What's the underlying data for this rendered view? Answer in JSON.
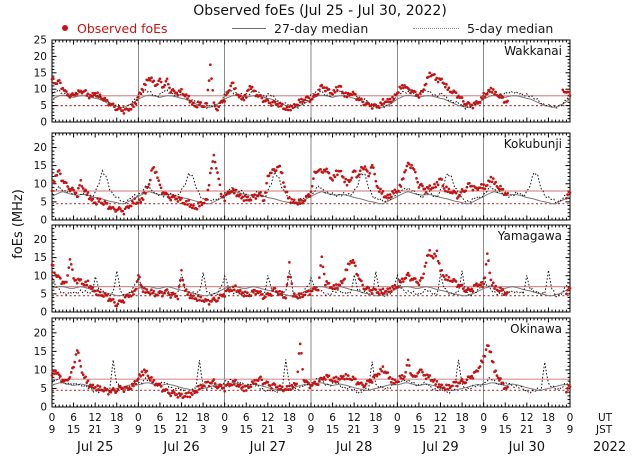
{
  "title": "Observed foEs (Jul 25 - Jul 30, 2022)",
  "legend": {
    "observed": "Observed foEs",
    "median27": "27-day median",
    "median5": "5-day median"
  },
  "colors": {
    "observed": "#c41414",
    "median27": "#7a7a7a",
    "median5": "#1a1a1a",
    "criteria_solid": "#d89090",
    "criteria_dotted": "#b03030",
    "grid": "#8a8a8a",
    "axis": "#000000"
  },
  "axis": {
    "ylabel": "foEs (MHz)",
    "ut_label": "UT",
    "jst_label": "JST",
    "year_label": "2022",
    "xtick_hours_ut": [
      0,
      6,
      12,
      18
    ],
    "xtick_hours_jst": [
      9,
      15,
      21,
      3
    ],
    "days": [
      "Jul 25",
      "Jul 26",
      "Jul 27",
      "Jul 28",
      "Jul 29",
      "Jul 30"
    ],
    "x_range_hours": [
      0,
      144
    ]
  },
  "chart_data": [
    {
      "type": "scatter",
      "station": "Wakkanai",
      "ylim": [
        0,
        25
      ],
      "yticks": [
        0,
        5,
        10,
        15,
        20,
        25
      ],
      "criteria": {
        "solid": 8,
        "dotted": 5
      },
      "observed": [
        13,
        11.5,
        12,
        10.5,
        9,
        8.5,
        8,
        9,
        8.5,
        9.5,
        8,
        8.5,
        9,
        8,
        7,
        6,
        5.5,
        5,
        4.5,
        4,
        3.5,
        3.2,
        4,
        5,
        8,
        10,
        12,
        13.5,
        12,
        11,
        12.5,
        11,
        13,
        10,
        9,
        8.5,
        9,
        8,
        7.5,
        6,
        5,
        5.5,
        4.5,
        5,
        17.5,
        5.5,
        4.5,
        6,
        7,
        8.5,
        12,
        9.5,
        8,
        7.5,
        8,
        11,
        9,
        8,
        7.5,
        7,
        6.5,
        6,
        5.5,
        5,
        4.5,
        4,
        4.5,
        5,
        5.5,
        6,
        6.5,
        7,
        7,
        8,
        9.5,
        11,
        10,
        9,
        8.5,
        10,
        11.5,
        9,
        8,
        8.5,
        8,
        7,
        6.5,
        6,
        5.5,
        5,
        4.5,
        4.5,
        6,
        6.5,
        7,
        7.5,
        9,
        10,
        11,
        9.5,
        10,
        9,
        8.5,
        9,
        12,
        14,
        14.5,
        13,
        13.5,
        12,
        10,
        9,
        8.5,
        8,
        7,
        6,
        5.5,
        5,
        5.5,
        6,
        8,
        9,
        10.5,
        9,
        8,
        7,
        6,
        null,
        null,
        null,
        null,
        null,
        null,
        null,
        null,
        null,
        null,
        null,
        null,
        null,
        null,
        null,
        9.5,
        10,
        8
      ],
      "median5_daily": [
        8.5,
        9,
        9.5,
        9,
        8.5,
        8,
        8.5,
        9,
        9.5,
        9,
        8.5,
        8,
        8.5,
        8,
        7,
        6.5,
        6,
        5.5,
        5,
        4.5,
        4.5,
        5,
        5.5,
        6.5,
        8.5
      ],
      "median27_daily": [
        7,
        7.5,
        8,
        8.2,
        8,
        7.8,
        7.5,
        7.8,
        8,
        8,
        7.8,
        7.5,
        7.2,
        7,
        6.5,
        6,
        5.5,
        5,
        4.8,
        4.5,
        4.5,
        5,
        5.5,
        6.2,
        7
      ]
    },
    {
      "type": "scatter",
      "station": "Kokubunji",
      "ylim": [
        0,
        24
      ],
      "yticks": [
        0,
        5,
        10,
        15,
        20
      ],
      "criteria": {
        "solid": 8,
        "dotted": 4.5
      },
      "observed": [
        8,
        12,
        13,
        11,
        10,
        9,
        8,
        7,
        10,
        8,
        7,
        6,
        5,
        5.5,
        4.5,
        4,
        3.5,
        3,
        3.5,
        3,
        2.5,
        3,
        4,
        5,
        5,
        6,
        8,
        10,
        14,
        13,
        9,
        8,
        7,
        6.5,
        6,
        5.5,
        5,
        4.5,
        5,
        4,
        3.5,
        4,
        4.5,
        5,
        13,
        17.5,
        14,
        7,
        6,
        7,
        8,
        7.5,
        7,
        6.5,
        6,
        5.5,
        6,
        6.5,
        7,
        6,
        12,
        14,
        13,
        15,
        12,
        8,
        6,
        5.5,
        5,
        4.5,
        5,
        6,
        8,
        13,
        14.5,
        13,
        14,
        12,
        11,
        13,
        14,
        12,
        10,
        11,
        13,
        12,
        14,
        15.5,
        12,
        16,
        10,
        8,
        7,
        6.5,
        7,
        8,
        8,
        9,
        13,
        15,
        15.5,
        13,
        10,
        9,
        8,
        8.5,
        9,
        10,
        12,
        9,
        8,
        7.5,
        7,
        6.5,
        8,
        9,
        10,
        9,
        8,
        9,
        9,
        10,
        12,
        10.5,
        9,
        8,
        7,
        null,
        null,
        null,
        null,
        null,
        null,
        null,
        null,
        null,
        null,
        null,
        null,
        null,
        null,
        null,
        null,
        7,
        7.5
      ],
      "median5_daily": [
        7,
        8,
        9,
        8.5,
        8,
        7.5,
        7,
        6.5,
        7,
        7.5,
        7,
        6.5,
        8,
        10,
        13,
        12,
        9,
        7,
        6,
        5.5,
        5,
        5.5,
        6,
        6.5,
        7
      ],
      "median27_daily": [
        6.5,
        7,
        7.5,
        7.8,
        7.5,
        7.2,
        7,
        6.8,
        7,
        7,
        6.8,
        6.5,
        6.2,
        6,
        5.8,
        5.5,
        5.2,
        5,
        4.8,
        4.5,
        4.5,
        5,
        5.5,
        6,
        6.5
      ]
    },
    {
      "type": "scatter",
      "station": "Yamagawa",
      "ylim": [
        0,
        24
      ],
      "yticks": [
        0,
        5,
        10,
        15,
        20
      ],
      "criteria": {
        "solid": 7,
        "dotted": 4.5
      },
      "observed": [
        13,
        10,
        9,
        8.5,
        8,
        15.5,
        9,
        8.5,
        8,
        7.5,
        8,
        7,
        6,
        5,
        4.5,
        4,
        3.5,
        3,
        2.5,
        3,
        3.5,
        4,
        4.5,
        5,
        10.5,
        7,
        6,
        5.5,
        5,
        4.5,
        5,
        5.5,
        6,
        5,
        4.5,
        4,
        10.5,
        6,
        5,
        4.5,
        4,
        3.5,
        3,
        2.5,
        3,
        3.5,
        4,
        4.5,
        5,
        5.5,
        6,
        6.5,
        6,
        5.5,
        5,
        4.5,
        5,
        5.5,
        5,
        4.5,
        5,
        5.5,
        6,
        5,
        4.5,
        4,
        13.5,
        5,
        4.5,
        4,
        4.5,
        5,
        6,
        6.5,
        7,
        15,
        8,
        7,
        6.5,
        7,
        8,
        9,
        12,
        14,
        13,
        10,
        8,
        7,
        6.5,
        6,
        5.5,
        5,
        5.5,
        6,
        6.5,
        7,
        7,
        8,
        9,
        10,
        9.5,
        9,
        8.5,
        9,
        14,
        16,
        15,
        16.5,
        12,
        10,
        9,
        8.5,
        8,
        7.5,
        7,
        6.5,
        6,
        6.5,
        7,
        7.5,
        7,
        16.5,
        9,
        7,
        6,
        5.5,
        5,
        null,
        null,
        null,
        null,
        null,
        null,
        null,
        null,
        null,
        null,
        null,
        null,
        null,
        null,
        null,
        null,
        6,
        6.5
      ],
      "median5_daily": [
        9.5,
        7,
        6,
        5.5,
        5.2,
        5,
        5.2,
        5.5,
        6,
        5.5,
        5.2,
        5,
        10,
        6.5,
        5.5,
        5.2,
        5,
        5.5,
        11,
        6,
        4.5,
        4.8,
        5.5,
        7,
        9.5
      ],
      "median27_daily": [
        6.5,
        6.8,
        7,
        7,
        6.8,
        6.5,
        6.5,
        6.8,
        7,
        6.8,
        6.5,
        6.2,
        6,
        5.8,
        5.5,
        5.2,
        5,
        4.8,
        4.5,
        4.5,
        4.8,
        5,
        5.5,
        6,
        6.5
      ]
    },
    {
      "type": "scatter",
      "station": "Okinawa",
      "ylim": [
        0,
        24
      ],
      "yticks": [
        0,
        5,
        10,
        15,
        20
      ],
      "criteria": {
        "solid": 7.5,
        "dotted": 4.5
      },
      "observed": [
        8.5,
        9.5,
        8,
        7.5,
        7,
        9,
        10.5,
        15.8,
        10,
        8,
        6.5,
        6,
        5.5,
        5,
        4.5,
        4,
        4,
        4.5,
        5,
        5.5,
        5,
        4.5,
        5,
        6,
        8,
        9.5,
        10,
        8,
        6.5,
        6,
        5.5,
        5,
        4.5,
        4,
        3.5,
        3,
        2.5,
        3,
        3.5,
        4,
        4.5,
        5,
        5.5,
        6,
        6.5,
        7,
        6,
        5.5,
        5,
        5.5,
        6,
        6.5,
        6,
        5.5,
        5,
        5.5,
        6,
        7,
        7.5,
        7,
        6.5,
        6,
        5.5,
        5,
        4.5,
        5,
        5.5,
        6,
        6.5,
        17,
        7,
        6,
        6,
        6.5,
        7,
        7.5,
        8,
        7.5,
        7,
        7.5,
        8,
        8.5,
        8,
        7.5,
        7,
        6.5,
        6,
        6.5,
        7,
        7.5,
        8,
        9,
        10,
        9.5,
        8,
        7,
        7,
        7.5,
        8,
        12,
        9,
        8,
        10.5,
        9,
        8,
        7.5,
        7,
        6.5,
        6,
        5.5,
        5,
        5.5,
        6,
        6.5,
        7,
        7.5,
        8,
        8.5,
        9,
        11,
        13,
        17,
        15,
        10,
        8,
        6,
        5,
        null,
        null,
        null,
        null,
        null,
        null,
        null,
        null,
        null,
        null,
        null,
        null,
        null,
        null,
        null,
        null,
        5,
        5.5
      ],
      "median5_daily": [
        6.5,
        7,
        7.5,
        7,
        6.5,
        6,
        6,
        6.5,
        6,
        5.5,
        5,
        4.8,
        4.5,
        4.2,
        4,
        4.5,
        5,
        12.5,
        6,
        5.2,
        5,
        5.2,
        5.5,
        6,
        6.5
      ],
      "median27_daily": [
        6,
        6.2,
        6.5,
        6.5,
        6.2,
        6,
        5.8,
        6,
        6.2,
        6,
        5.8,
        5.5,
        5.2,
        5,
        4.8,
        4.5,
        4.5,
        4.8,
        5,
        5.2,
        5.5,
        5.8,
        6,
        6,
        6
      ]
    }
  ]
}
